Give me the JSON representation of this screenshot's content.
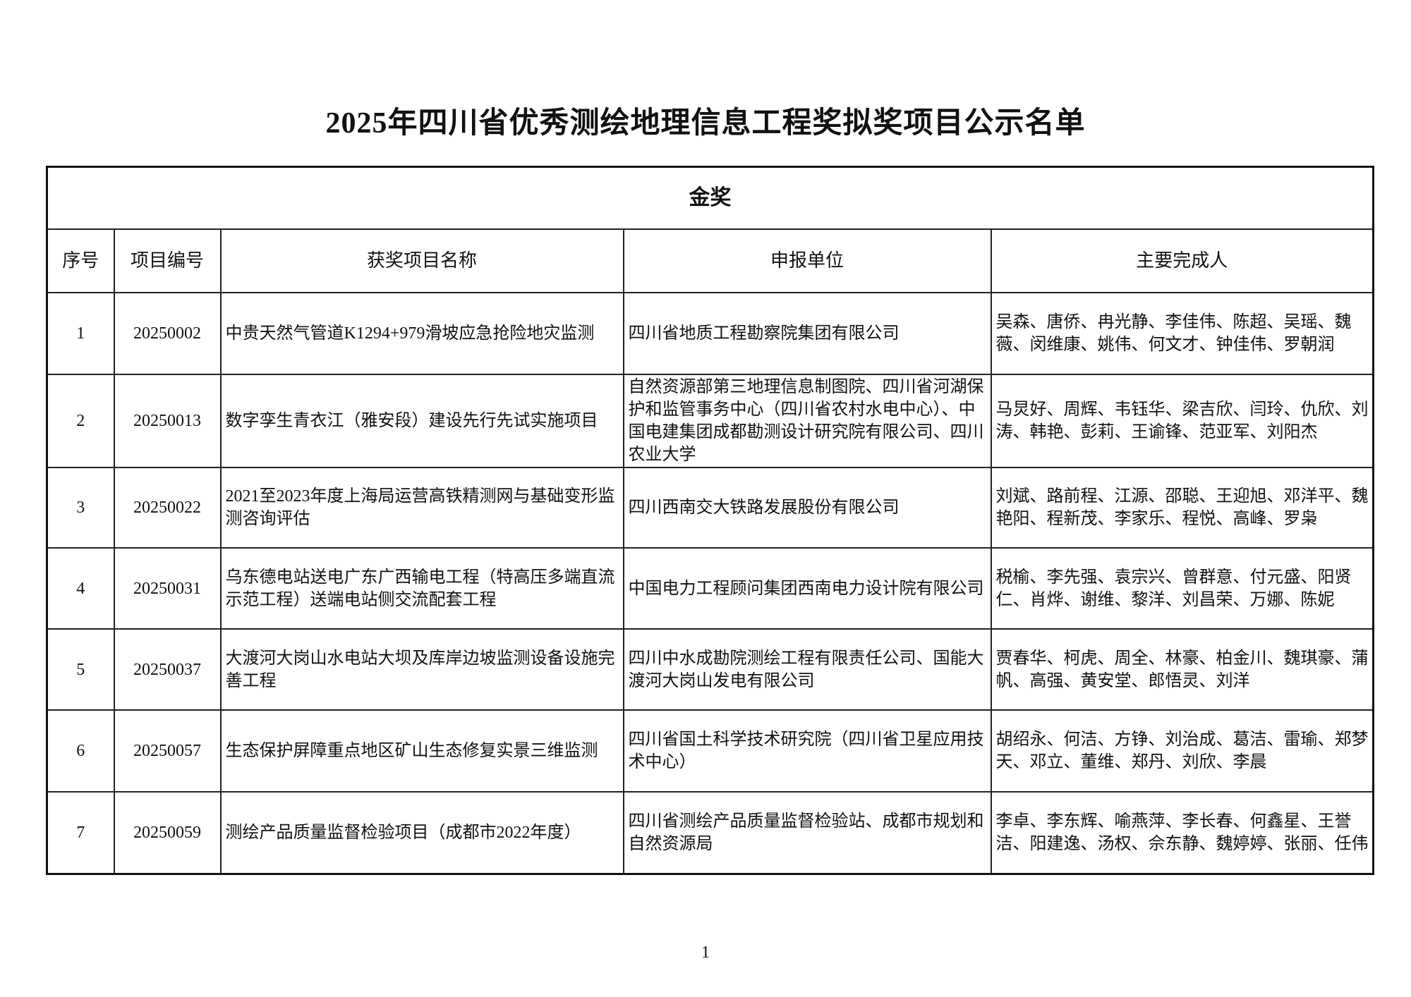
{
  "title": "2025年四川省优秀测绘地理信息工程奖拟奖项目公示名单",
  "award_level": "金奖",
  "columns": [
    "序号",
    "项目编号",
    "获奖项目名称",
    "申报单位",
    "主要完成人"
  ],
  "rows": [
    {
      "no": "1",
      "code": "20250002",
      "name": "中贵天然气管道K1294+979滑坡应急抢险地灾监测",
      "unit": "四川省地质工程勘察院集团有限公司",
      "people": "吴森、唐侨、冉光静、李佳伟、陈超、吴瑶、魏薇、闵维康、姚伟、何文才、钟佳伟、罗朝润"
    },
    {
      "no": "2",
      "code": "20250013",
      "name": "数字孪生青衣江（雅安段）建设先行先试实施项目",
      "unit": "自然资源部第三地理信息制图院、四川省河湖保护和监管事务中心（四川省农村水电中心）、中国电建集团成都勘测设计研究院有限公司、四川农业大学",
      "people": "马炅好、周辉、韦钰华、梁吉欣、闫玲、仇欣、刘涛、韩艳、彭莉、王谕锋、范亚军、刘阳杰"
    },
    {
      "no": "3",
      "code": "20250022",
      "name": "2021至2023年度上海局运营高铁精测网与基础变形监测咨询评估",
      "unit": "四川西南交大铁路发展股份有限公司",
      "people": "刘斌、路前程、江源、邵聪、王迎旭、邓洋平、魏艳阳、程新茂、李家乐、程悦、高峰、罗枭"
    },
    {
      "no": "4",
      "code": "20250031",
      "name": "乌东德电站送电广东广西输电工程（特高压多端直流示范工程）送端电站侧交流配套工程",
      "unit": "中国电力工程顾问集团西南电力设计院有限公司",
      "people": "税榆、李先强、袁宗兴、曾群意、付元盛、阳贤仁、肖烨、谢维、黎洋、刘昌荣、万娜、陈妮"
    },
    {
      "no": "5",
      "code": "20250037",
      "name": "大渡河大岗山水电站大坝及库岸边坡监测设备设施完善工程",
      "unit": "四川中水成勘院测绘工程有限责任公司、国能大渡河大岗山发电有限公司",
      "people": "贾春华、柯虎、周全、林豪、柏金川、魏琪豪、蒲帆、高强、黄安堂、郎悟灵、刘洋"
    },
    {
      "no": "6",
      "code": "20250057",
      "name": "生态保护屏障重点地区矿山生态修复实景三维监测",
      "unit": "四川省国土科学技术研究院（四川省卫星应用技术中心）",
      "people": "胡绍永、何洁、方铮、刘治成、葛洁、雷瑜、郑梦天、邓立、董维、郑丹、刘欣、李晨"
    },
    {
      "no": "7",
      "code": "20250059",
      "name": "测绘产品质量监督检验项目（成都市2022年度）",
      "unit": "四川省测绘产品质量监督检验站、成都市规划和自然资源局",
      "people": "李卓、李东辉、喻燕萍、李长春、何鑫星、王誉洁、阳建逸、汤权、佘东静、魏婷婷、张丽、任伟"
    }
  ],
  "page_number": "1"
}
